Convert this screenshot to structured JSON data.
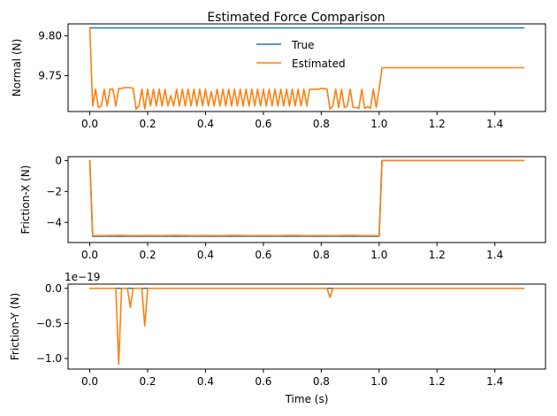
{
  "chart_data": {
    "type": "line",
    "title": "Estimated Force Comparison",
    "legend": {
      "placement": "top-center",
      "entries": [
        "True",
        "Estimated"
      ]
    },
    "colors": {
      "true": "#1f77b4",
      "estimated": "#ff7f0e"
    },
    "grid": false,
    "xlabel": "Time (s)",
    "xlim": [
      -0.075,
      1.575
    ],
    "xticks": [
      0.0,
      0.2,
      0.4,
      0.6,
      0.8,
      1.0,
      1.2,
      1.4
    ],
    "xtick_labels": [
      "0.0",
      "0.2",
      "0.4",
      "0.6",
      "0.8",
      "1.0",
      "1.2",
      "1.4"
    ],
    "subplots": [
      {
        "ylabel": "Normal (N)",
        "ylim": [
          9.705,
          9.815
        ],
        "yticks": [
          9.75,
          9.8
        ],
        "ytick_labels": [
          "9.75",
          "9.80"
        ],
        "offset_label": "",
        "series": [
          {
            "name": "True",
            "x": [
              0.0,
              1.5
            ],
            "values": [
              9.81,
              9.81
            ]
          },
          {
            "name": "Estimated",
            "x": [
              0.0,
              0.01,
              0.02,
              0.03,
              0.04,
              0.05,
              0.06,
              0.07,
              0.08,
              0.09,
              0.1,
              0.11,
              0.12,
              0.13,
              0.14,
              0.15,
              0.16,
              0.17,
              0.18,
              0.19,
              0.2,
              0.21,
              0.22,
              0.23,
              0.24,
              0.25,
              0.26,
              0.27,
              0.28,
              0.29,
              0.3,
              0.31,
              0.32,
              0.33,
              0.34,
              0.35,
              0.36,
              0.37,
              0.38,
              0.39,
              0.4,
              0.41,
              0.42,
              0.43,
              0.44,
              0.45,
              0.46,
              0.47,
              0.48,
              0.49,
              0.5,
              0.51,
              0.52,
              0.53,
              0.54,
              0.55,
              0.56,
              0.57,
              0.58,
              0.59,
              0.6,
              0.61,
              0.62,
              0.63,
              0.64,
              0.65,
              0.66,
              0.67,
              0.68,
              0.69,
              0.7,
              0.71,
              0.72,
              0.73,
              0.74,
              0.75,
              0.76,
              0.77,
              0.78,
              0.79,
              0.8,
              0.81,
              0.82,
              0.83,
              0.84,
              0.85,
              0.86,
              0.87,
              0.88,
              0.89,
              0.9,
              0.91,
              0.92,
              0.93,
              0.94,
              0.95,
              0.96,
              0.97,
              0.98,
              0.99,
              1.0,
              1.01,
              1.5
            ],
            "values": [
              9.81,
              9.712,
              9.733,
              9.71,
              9.712,
              9.733,
              9.712,
              9.733,
              9.733,
              9.712,
              9.734,
              9.734,
              9.735,
              9.735,
              9.735,
              9.734,
              9.708,
              9.712,
              9.733,
              9.708,
              9.733,
              9.712,
              9.733,
              9.712,
              9.733,
              9.712,
              9.733,
              9.712,
              9.725,
              9.712,
              9.733,
              9.712,
              9.733,
              9.712,
              9.733,
              9.712,
              9.733,
              9.712,
              9.733,
              9.712,
              9.733,
              9.712,
              9.73,
              9.712,
              9.733,
              9.712,
              9.733,
              9.712,
              9.733,
              9.712,
              9.733,
              9.712,
              9.733,
              9.712,
              9.733,
              9.712,
              9.733,
              9.712,
              9.733,
              9.712,
              9.733,
              9.712,
              9.733,
              9.712,
              9.733,
              9.712,
              9.733,
              9.712,
              9.733,
              9.712,
              9.733,
              9.712,
              9.733,
              9.712,
              9.733,
              9.712,
              9.733,
              9.733,
              9.733,
              9.733,
              9.734,
              9.734,
              9.733,
              9.708,
              9.712,
              9.733,
              9.71,
              9.733,
              9.71,
              9.712,
              9.733,
              9.71,
              9.71,
              9.709,
              9.733,
              9.709,
              9.711,
              9.709,
              9.733,
              9.71,
              9.733,
              9.76,
              9.76
            ]
          }
        ]
      },
      {
        "ylabel": "Friction-X (N)",
        "ylim": [
          -5.3,
          0.25
        ],
        "yticks": [
          -4,
          -2,
          0
        ],
        "ytick_labels": [
          "−4",
          "−2",
          "0"
        ],
        "offset_label": "",
        "series": [
          {
            "name": "True",
            "x": [
              0.0,
              0.01,
              1.0,
              1.01,
              1.5
            ],
            "values": [
              0,
              -4.9,
              -4.9,
              0,
              0
            ]
          },
          {
            "name": "Estimated",
            "x": [
              0.0,
              0.01,
              0.05,
              0.1,
              0.15,
              0.2,
              0.25,
              0.3,
              0.35,
              0.4,
              0.45,
              0.5,
              0.55,
              0.6,
              0.65,
              0.7,
              0.75,
              0.8,
              0.85,
              0.9,
              0.95,
              1.0,
              1.01,
              1.5
            ],
            "values": [
              0,
              -4.85,
              -4.86,
              -4.84,
              -4.86,
              -4.85,
              -4.86,
              -4.84,
              -4.86,
              -4.85,
              -4.86,
              -4.84,
              -4.86,
              -4.85,
              -4.86,
              -4.84,
              -4.86,
              -4.85,
              -4.86,
              -4.84,
              -4.86,
              -4.85,
              0,
              0
            ]
          }
        ]
      },
      {
        "ylabel": "Friction-Y (N)",
        "ylim": [
          -1.15e-19,
          6e-21
        ],
        "yticks": [
          -1e-19,
          -5e-20,
          0.0
        ],
        "ytick_labels": [
          "−1.0",
          "−0.5",
          "0.0"
        ],
        "offset_label": "1e−19",
        "series": [
          {
            "name": "True",
            "x": [
              0.0,
              1.5
            ],
            "values": [
              0,
              0
            ]
          },
          {
            "name": "Estimated",
            "x": [
              0.0,
              0.09,
              0.1,
              0.11,
              0.13,
              0.14,
              0.15,
              0.18,
              0.19,
              0.2,
              0.82,
              0.83,
              0.84,
              1.5
            ],
            "values": [
              0,
              0,
              -1.08e-19,
              0,
              0,
              -2.7e-20,
              0,
              0,
              -5.4e-20,
              0,
              0,
              -1.3e-20,
              0,
              0
            ]
          }
        ]
      }
    ]
  }
}
